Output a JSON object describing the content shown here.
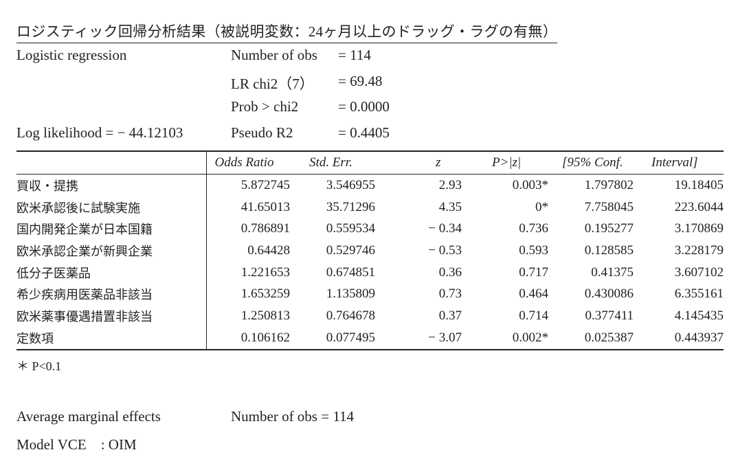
{
  "title": "ロジスティック回帰分析結果（被説明変数：24ヶ月以上のドラッグ・ラグの有無）",
  "summary": {
    "model_label": "Logistic regression",
    "log_likelihood_label": "Log likelihood = − 44.12103",
    "stats": [
      {
        "key": "Number of obs",
        "eq": "= 114"
      },
      {
        "key": "LR chi2（7）",
        "eq": "= 69.48"
      },
      {
        "key": "Prob > chi2",
        "eq": "= 0.0000"
      },
      {
        "key": "Pseudo R2",
        "eq": "= 0.4405"
      }
    ]
  },
  "table": {
    "headers": [
      "Odds Ratio",
      "Std. Err.",
      "z",
      "P>|z|",
      "[95% Conf.",
      "Interval]"
    ],
    "rows": [
      {
        "var": "買収・提携",
        "odds": "5.872745",
        "se": "3.546955",
        "z": "2.93",
        "p": "0.003*",
        "lo": "1.797802",
        "hi": "19.18405"
      },
      {
        "var": "欧米承認後に試験実施",
        "odds": "41.65013",
        "se": "35.71296",
        "z": "4.35",
        "p": "0*",
        "lo": "7.758045",
        "hi": "223.6044"
      },
      {
        "var": "国内開発企業が日本国籍",
        "odds": "0.786891",
        "se": "0.559534",
        "z": "− 0.34",
        "p": "0.736",
        "lo": "0.195277",
        "hi": "3.170869"
      },
      {
        "var": "欧米承認企業が新興企業",
        "odds": "0.64428",
        "se": "0.529746",
        "z": "− 0.53",
        "p": "0.593",
        "lo": "0.128585",
        "hi": "3.228179"
      },
      {
        "var": "低分子医薬品",
        "odds": "1.221653",
        "se": "0.674851",
        "z": "0.36",
        "p": "0.717",
        "lo": "0.41375",
        "hi": "3.607102"
      },
      {
        "var": "希少疾病用医薬品非該当",
        "odds": "1.653259",
        "se": "1.135809",
        "z": "0.73",
        "p": "0.464",
        "lo": "0.430086",
        "hi": "6.355161"
      },
      {
        "var": "欧米薬事優遇措置非該当",
        "odds": "1.250813",
        "se": "0.764678",
        "z": "0.37",
        "p": "0.714",
        "lo": "0.377411",
        "hi": "4.145435"
      },
      {
        "var": "定数項",
        "odds": "0.106162",
        "se": "0.077495",
        "z": "− 3.07",
        "p": "0.002*",
        "lo": "0.025387",
        "hi": "0.443937"
      }
    ]
  },
  "footnote": "＊ P<0.1",
  "marginal": {
    "label": "Average marginal effects",
    "stat": "Number of obs = 114",
    "vce": "Model VCE　: OIM"
  }
}
